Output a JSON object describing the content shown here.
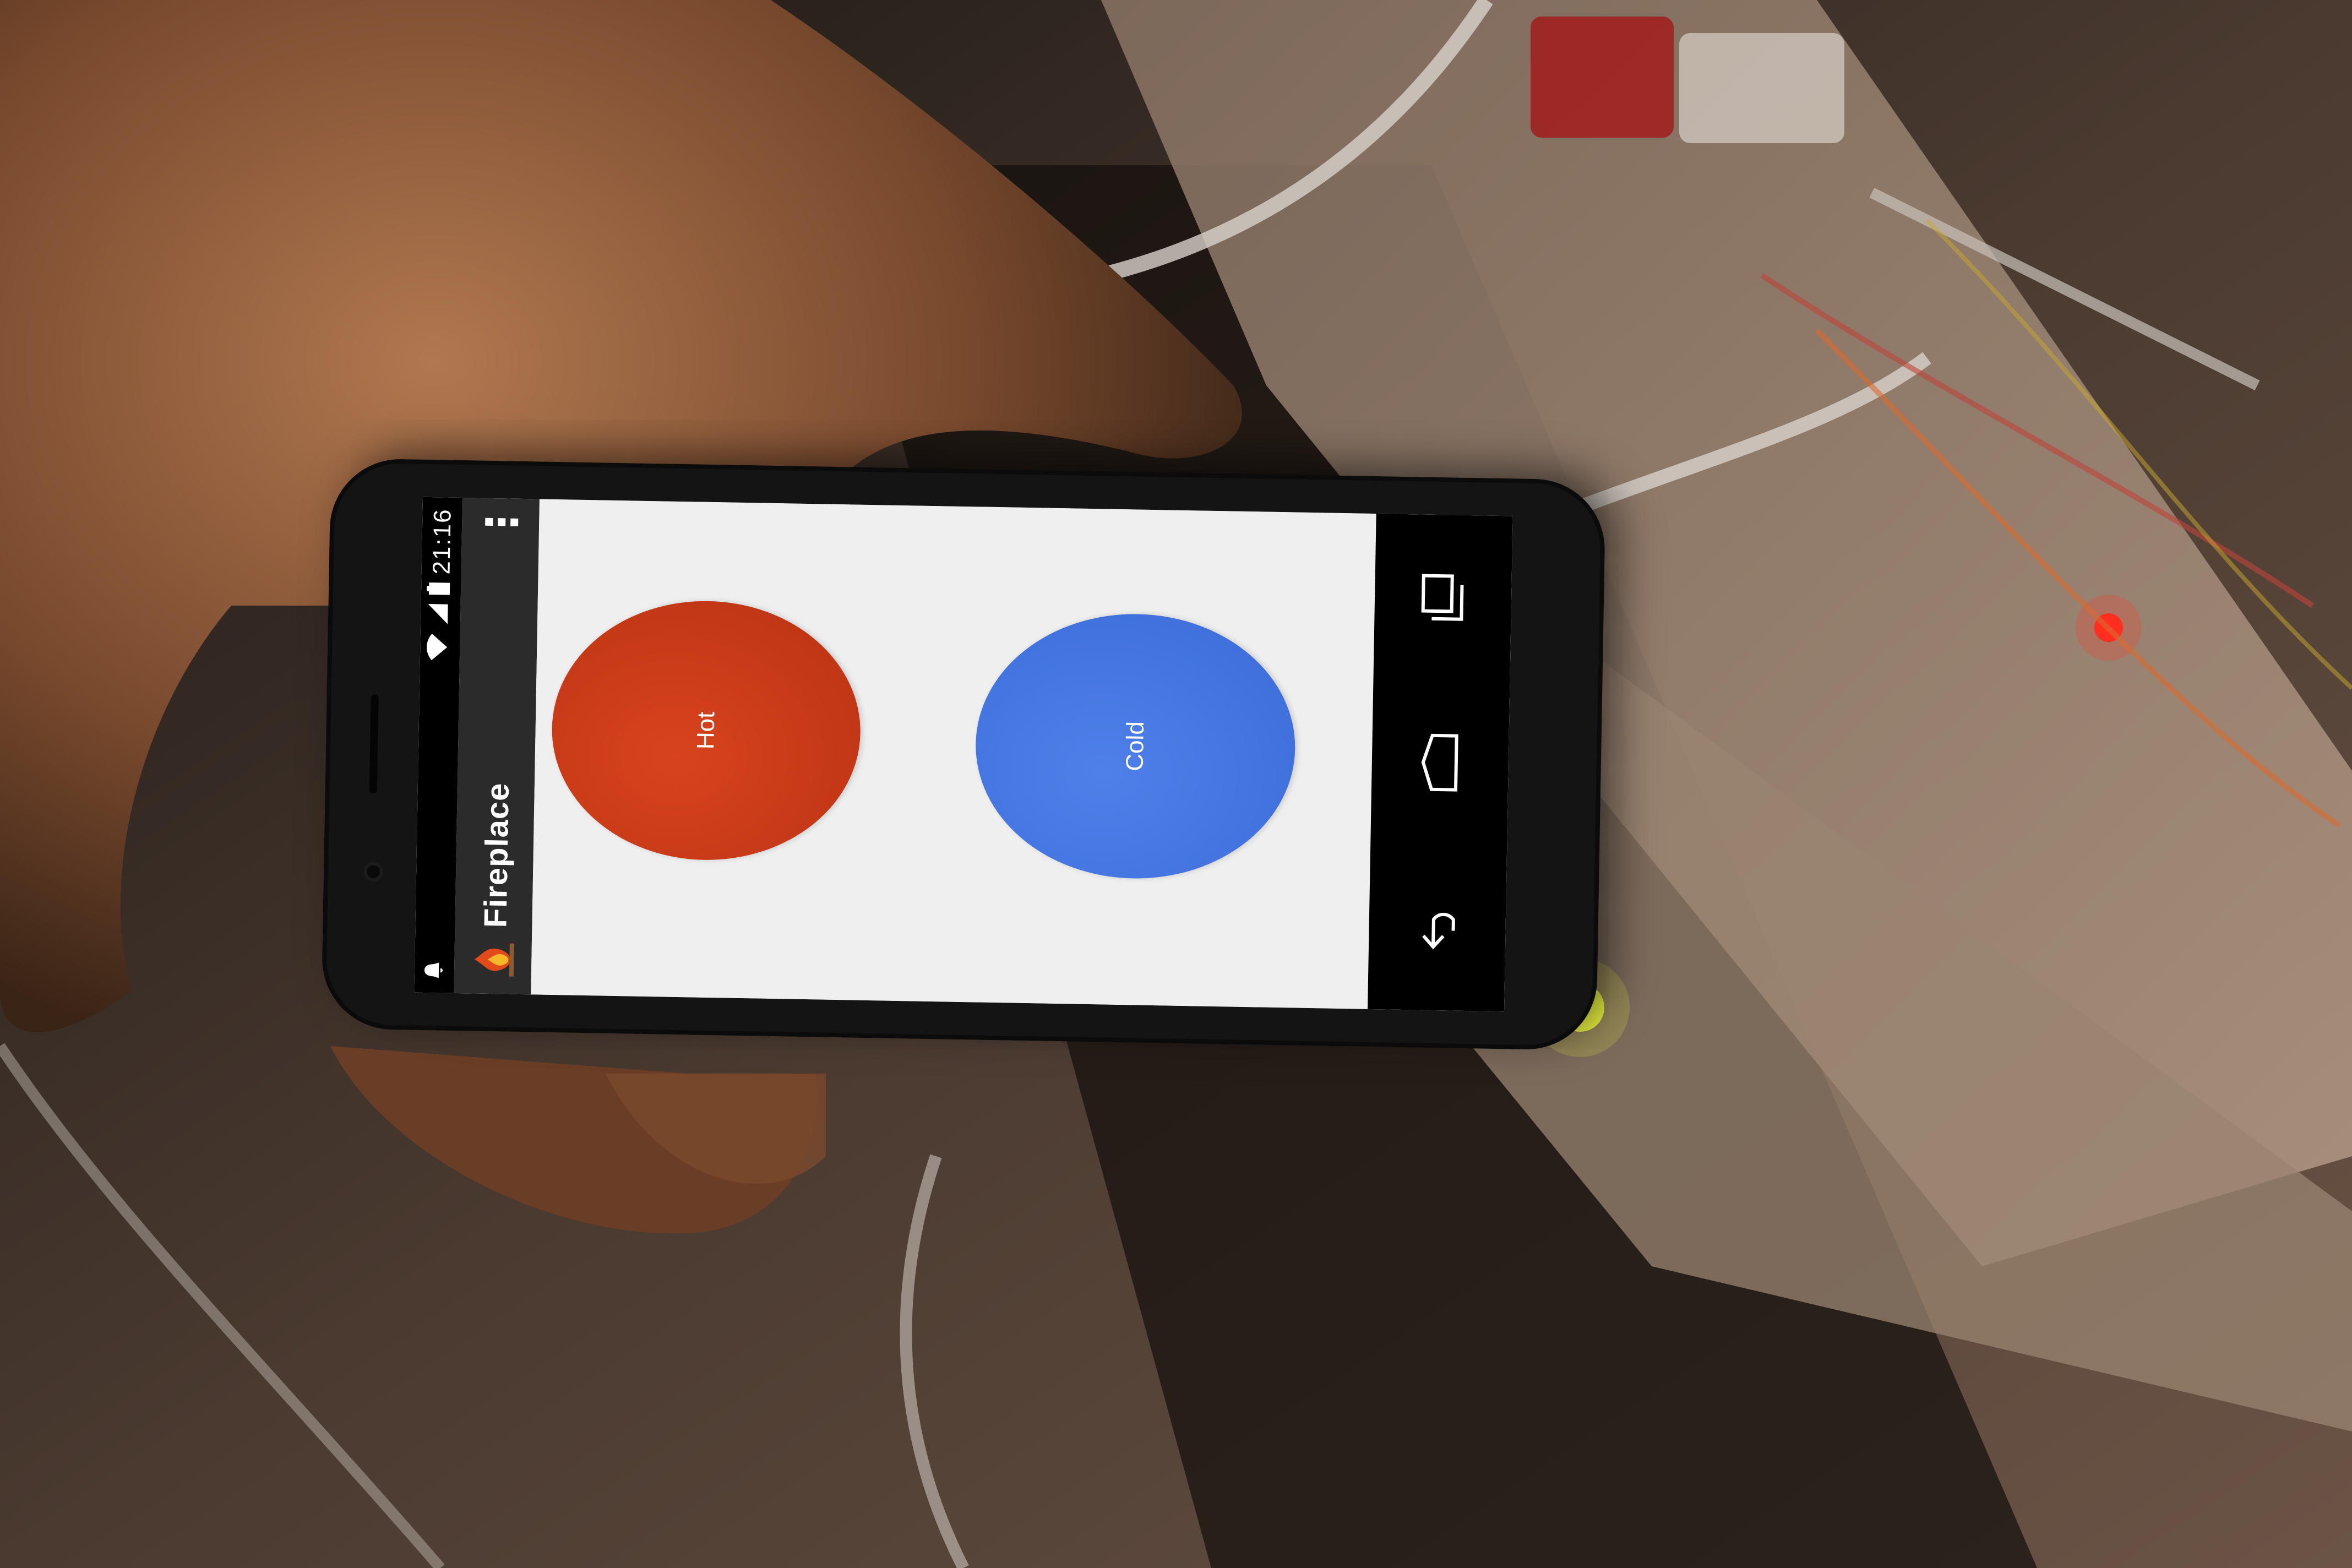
{
  "status_bar": {
    "time": "21:16"
  },
  "app": {
    "title": "Fireplace"
  },
  "buttons": {
    "cold_label": "Cold",
    "hot_label": "Hot"
  },
  "colors": {
    "cold": "#3f71e0",
    "hot": "#c33a17",
    "action_bar": "#2b2b2b",
    "screen_bg": "#efefef"
  },
  "icons": {
    "back": "back-icon",
    "home": "home-icon",
    "recents": "recents-icon",
    "overflow": "overflow-menu-icon",
    "wifi": "wifi-icon",
    "signal": "signal-icon",
    "battery": "battery-icon",
    "notification": "notification-icon",
    "app": "fireplace-app-icon"
  }
}
